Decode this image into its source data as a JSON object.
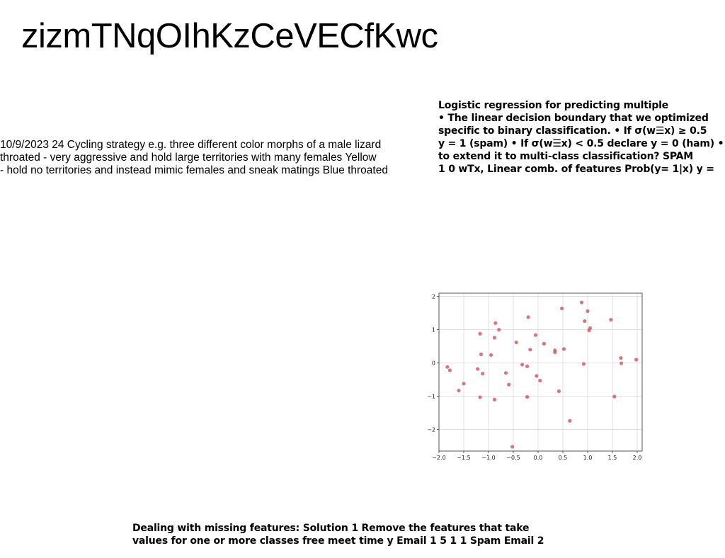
{
  "title": "zizmTNqOIhKzCeVECfKwc",
  "left_text": {
    "lines": [
      "10/9/2023 24 Cycling strategy e.g. three different color morphs of a male lizard",
      "throated - very aggressive and hold large territories with many females Yellow",
      "- hold no territories and instead mimic females and sneak matings Blue throated"
    ]
  },
  "right_text": {
    "lines": [
      "Logistic regression for predicting multiple",
      "• The linear decision boundary that we optimized",
      "specific to binary classification. • If σ(w☰x) ≥ 0.5",
      "y = 1 (spam) • If σ(w☰x) < 0.5 declare y = 0 (ham) •",
      "to extend it to multi-class classification? SPAM",
      "1 0 wTx, Linear comb. of features Prob(y= 1|x) y ="
    ]
  },
  "bottom_text": {
    "lines": [
      "Dealing with missing features: Solution 1 Remove the features that take",
      "values for one or more classes free meet time y Email 1 5 1 1 Spam Email 2"
    ]
  },
  "chart_data": {
    "type": "scatter",
    "title": "",
    "xlabel": "",
    "ylabel": "",
    "xlim": [
      -2.0,
      2.1
    ],
    "ylim": [
      -2.65,
      2.1
    ],
    "xticks": [
      "-2.0",
      "-1.5",
      "-1.0",
      "-0.5",
      "0.0",
      "0.5",
      "1.0",
      "1.5",
      "2.0"
    ],
    "yticks": [
      "-2",
      "-1",
      "0",
      "1",
      "2"
    ],
    "grid": true,
    "point_color": "#c9606a",
    "points": [
      [
        -1.83,
        -0.12
      ],
      [
        -1.78,
        -0.22
      ],
      [
        -1.6,
        -0.83
      ],
      [
        -1.5,
        -0.62
      ],
      [
        -1.22,
        -0.18
      ],
      [
        -1.17,
        -1.03
      ],
      [
        -1.15,
        0.26
      ],
      [
        -1.12,
        -0.32
      ],
      [
        -1.17,
        0.88
      ],
      [
        -0.95,
        0.24
      ],
      [
        -0.88,
        0.76
      ],
      [
        -0.86,
        1.2
      ],
      [
        -0.79,
        1.0
      ],
      [
        -0.88,
        -1.1
      ],
      [
        -0.65,
        -0.3
      ],
      [
        -0.59,
        -0.65
      ],
      [
        -0.52,
        -2.52
      ],
      [
        -0.44,
        0.62
      ],
      [
        -0.32,
        -0.05
      ],
      [
        -0.22,
        -0.1
      ],
      [
        -0.22,
        -1.02
      ],
      [
        -0.2,
        1.38
      ],
      [
        -0.16,
        0.4
      ],
      [
        -0.05,
        0.84
      ],
      [
        -0.03,
        -0.39
      ],
      [
        0.04,
        -0.53
      ],
      [
        0.12,
        0.58
      ],
      [
        0.34,
        0.32
      ],
      [
        0.34,
        0.38
      ],
      [
        0.42,
        -0.85
      ],
      [
        0.48,
        1.64
      ],
      [
        0.52,
        0.42
      ],
      [
        0.64,
        -1.74
      ],
      [
        0.88,
        1.82
      ],
      [
        0.92,
        -0.03
      ],
      [
        0.94,
        1.26
      ],
      [
        1.0,
        1.56
      ],
      [
        1.03,
        0.98
      ],
      [
        1.05,
        1.05
      ],
      [
        1.47,
        1.3
      ],
      [
        1.54,
        -1.01
      ],
      [
        1.67,
        0.15
      ],
      [
        1.68,
        -0.01
      ],
      [
        1.98,
        0.1
      ]
    ]
  }
}
